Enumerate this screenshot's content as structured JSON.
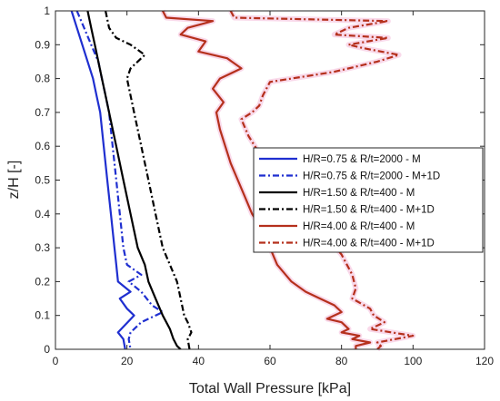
{
  "chart_data": {
    "type": "line",
    "title": "",
    "xlabel": "Total Wall Pressure [kPa]",
    "ylabel": "z/H [-]",
    "xlim": [
      0,
      120
    ],
    "ylim": [
      0,
      1
    ],
    "xticks": [
      "0",
      "20",
      "40",
      "60",
      "80",
      "100",
      "120"
    ],
    "yticks": [
      "0",
      "0.1",
      "0.2",
      "0.3",
      "0.4",
      "0.5",
      "0.6",
      "0.7",
      "0.8",
      "0.9",
      "1"
    ],
    "grid": false,
    "legend_position": "center-right",
    "series": [
      {
        "name": "H/R=0.75 & R/t=2000 - M",
        "color": "#1f2fd0",
        "dash": "solid",
        "x": [
          4.5,
          6,
          7.5,
          9,
          10.5,
          11.5,
          12.5,
          13.5,
          14.5,
          15.5,
          16.5,
          17,
          17.5,
          21,
          18,
          20,
          22,
          17.5,
          19,
          19.5
        ],
        "y": [
          1,
          0.95,
          0.9,
          0.85,
          0.8,
          0.75,
          0.7,
          0.6,
          0.5,
          0.4,
          0.3,
          0.25,
          0.2,
          0.17,
          0.15,
          0.12,
          0.1,
          0.05,
          0.03,
          0
        ]
      },
      {
        "name": "H/R=0.75 & R/t=2000 - M+1D",
        "color": "#1f2fd0",
        "dash": "dashdot",
        "x": [
          6,
          8,
          10,
          12,
          13,
          14,
          15,
          16,
          17,
          18,
          19,
          20,
          24,
          20.5,
          24,
          27,
          30,
          24,
          21,
          20.5,
          21
        ],
        "y": [
          1,
          0.95,
          0.9,
          0.85,
          0.8,
          0.75,
          0.7,
          0.6,
          0.5,
          0.4,
          0.3,
          0.25,
          0.22,
          0.2,
          0.17,
          0.13,
          0.11,
          0.08,
          0.05,
          0.03,
          0
        ]
      },
      {
        "name": "H/R=1.50 & R/t=400 - M",
        "color": "#000000",
        "dash": "solid",
        "x": [
          9,
          10,
          11,
          12,
          13,
          14,
          15,
          17,
          19,
          21,
          23,
          25,
          26,
          28,
          30,
          32,
          33,
          34,
          35
        ],
        "y": [
          1,
          0.95,
          0.9,
          0.85,
          0.8,
          0.75,
          0.7,
          0.6,
          0.5,
          0.4,
          0.3,
          0.25,
          0.2,
          0.15,
          0.1,
          0.06,
          0.03,
          0.01,
          0
        ]
      },
      {
        "name": "H/R=1.50 & R/t=400 - M+1D",
        "color": "#000000",
        "dash": "dashdot",
        "x": [
          14,
          15,
          17,
          21,
          25,
          21,
          20,
          21,
          22,
          24,
          26,
          28,
          30,
          32,
          34,
          35,
          36,
          37,
          38,
          37,
          37.5
        ],
        "y": [
          1,
          0.95,
          0.92,
          0.9,
          0.87,
          0.83,
          0.8,
          0.75,
          0.7,
          0.6,
          0.5,
          0.4,
          0.3,
          0.25,
          0.2,
          0.15,
          0.1,
          0.08,
          0.05,
          0.03,
          0
        ]
      },
      {
        "name": "H/R=4.00 & R/t=400 - M",
        "color": "#b5301c",
        "dash": "solid",
        "x": [
          30,
          31,
          44,
          37,
          35,
          42,
          40,
          48,
          52,
          46,
          44,
          47,
          45,
          46,
          47.5,
          49,
          51,
          53,
          55,
          58,
          60,
          62,
          66,
          70,
          74,
          78,
          80,
          76,
          80,
          82,
          80,
          85,
          83,
          88,
          84,
          84
        ],
        "y": [
          1,
          0.98,
          0.97,
          0.95,
          0.93,
          0.91,
          0.88,
          0.86,
          0.83,
          0.8,
          0.77,
          0.73,
          0.7,
          0.65,
          0.6,
          0.55,
          0.5,
          0.45,
          0.4,
          0.35,
          0.3,
          0.25,
          0.2,
          0.17,
          0.15,
          0.13,
          0.11,
          0.09,
          0.08,
          0.06,
          0.05,
          0.04,
          0.03,
          0.02,
          0.01,
          0
        ]
      },
      {
        "name": "H/R=4.00 & R/t=400 - M+1D",
        "color": "#b5301c",
        "dash": "dashdot",
        "x": [
          49,
          50,
          93,
          82,
          78,
          93,
          82,
          86,
          96,
          90,
          78,
          60,
          58,
          57,
          55,
          52,
          54,
          57,
          60,
          63,
          67,
          72,
          76,
          80,
          83,
          84,
          83,
          88,
          89,
          92,
          88,
          100,
          90,
          91,
          90
        ],
        "y": [
          1,
          0.98,
          0.97,
          0.95,
          0.93,
          0.92,
          0.9,
          0.89,
          0.87,
          0.85,
          0.82,
          0.79,
          0.75,
          0.72,
          0.7,
          0.68,
          0.63,
          0.58,
          0.53,
          0.48,
          0.43,
          0.38,
          0.33,
          0.28,
          0.22,
          0.18,
          0.15,
          0.12,
          0.1,
          0.08,
          0.06,
          0.04,
          0.02,
          0.01,
          0
        ]
      }
    ]
  }
}
